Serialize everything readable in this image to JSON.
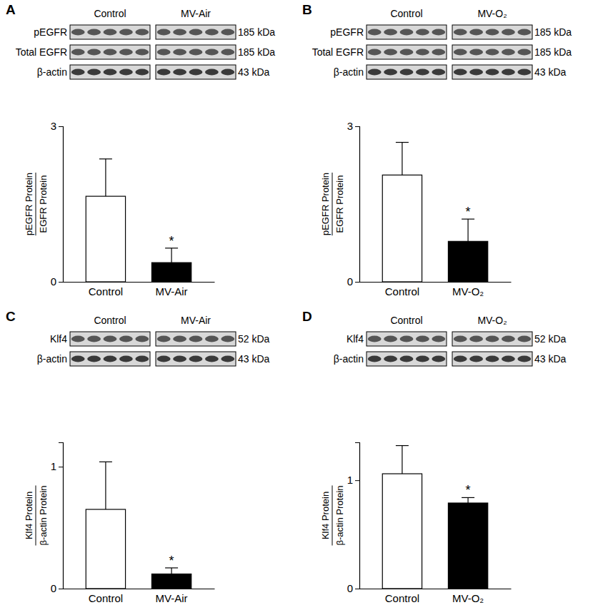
{
  "chart_data": [
    {
      "type": "bar",
      "title": "A",
      "blot": {
        "groups": [
          "Control",
          "MV-Air"
        ],
        "rows": [
          {
            "label": "pEGFR",
            "size": "185 kDa"
          },
          {
            "label": "Total EGFR",
            "size": "185 kDa"
          },
          {
            "label": "β-actin",
            "size": "43 kDa"
          }
        ]
      },
      "y_label": [
        "pEGFR Protein",
        "EGFR Protein"
      ],
      "categories": [
        "Control",
        "MV-Air"
      ],
      "values": [
        1.65,
        0.37
      ],
      "errors": [
        0.72,
        0.28
      ],
      "significance": [
        null,
        "*"
      ],
      "colors": [
        "#ffffff",
        "#000000"
      ],
      "ylim": [
        0,
        3
      ],
      "yticks": [
        0,
        3
      ]
    },
    {
      "type": "bar",
      "title": "B",
      "blot": {
        "groups": [
          "Control",
          "MV-O₂"
        ],
        "rows": [
          {
            "label": "pEGFR",
            "size": "185 kDa"
          },
          {
            "label": "Total EGFR",
            "size": "185 kDa"
          },
          {
            "label": "β-actin",
            "size": "43 kDa"
          }
        ]
      },
      "y_label": [
        "pEGFR Protein",
        "EGFR Protein"
      ],
      "categories": [
        "Control",
        "MV-O₂"
      ],
      "values": [
        2.06,
        0.78
      ],
      "errors": [
        0.63,
        0.43
      ],
      "significance": [
        null,
        "*"
      ],
      "colors": [
        "#ffffff",
        "#000000"
      ],
      "ylim": [
        0,
        3
      ],
      "yticks": [
        0,
        3
      ]
    },
    {
      "type": "bar",
      "title": "C",
      "blot": {
        "groups": [
          "Control",
          "MV-Air"
        ],
        "rows": [
          {
            "label": "Klf4",
            "size": "52 kDa"
          },
          {
            "label": "β-actin",
            "size": "43 kDa"
          }
        ]
      },
      "y_label": [
        "Klf4 Protein",
        "β-actin Protein"
      ],
      "categories": [
        "Control",
        "MV-Air"
      ],
      "values": [
        0.65,
        0.12
      ],
      "errors": [
        0.39,
        0.05
      ],
      "significance": [
        null,
        "*"
      ],
      "colors": [
        "#ffffff",
        "#000000"
      ],
      "ylim": [
        0,
        1.2
      ],
      "yticks": [
        0,
        1
      ]
    },
    {
      "type": "bar",
      "title": "D",
      "blot": {
        "groups": [
          "Control",
          "MV-O₂"
        ],
        "rows": [
          {
            "label": "Klf4",
            "size": "52 kDa"
          },
          {
            "label": "β-actin",
            "size": "43 kDa"
          }
        ]
      },
      "y_label": [
        "Klf4 Protein",
        "β-actin Protein"
      ],
      "categories": [
        "Control",
        "MV-O₂"
      ],
      "values": [
        1.06,
        0.79
      ],
      "errors": [
        0.26,
        0.05
      ],
      "significance": [
        null,
        "*"
      ],
      "colors": [
        "#ffffff",
        "#000000"
      ],
      "ylim": [
        0,
        1.35
      ],
      "yticks": [
        0,
        1
      ]
    }
  ]
}
